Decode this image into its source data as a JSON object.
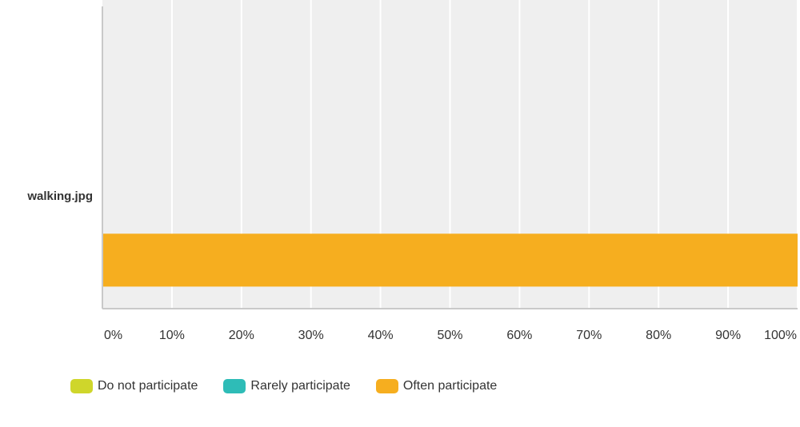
{
  "chart_data": {
    "type": "bar",
    "orientation": "horizontal",
    "stacked": true,
    "categories": [
      "walking.jpg"
    ],
    "series": [
      {
        "name": "Do not participate",
        "color": "#cfd62b",
        "values": [
          0
        ]
      },
      {
        "name": "Rarely participate",
        "color": "#2ebcb7",
        "values": [
          0
        ]
      },
      {
        "name": "Often participate",
        "color": "#f6ae1f",
        "values": [
          100
        ]
      }
    ],
    "xlim": [
      0,
      100
    ],
    "xticks": [
      "0%",
      "10%",
      "20%",
      "30%",
      "40%",
      "50%",
      "60%",
      "70%",
      "80%",
      "90%",
      "100%"
    ],
    "grid": true,
    "legend_position": "bottom-left",
    "title": "",
    "xlabel": "",
    "ylabel": ""
  }
}
